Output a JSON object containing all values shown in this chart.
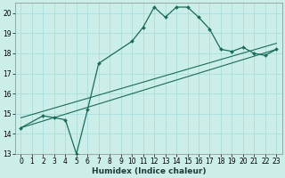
{
  "xlabel": "Humidex (Indice chaleur)",
  "background_color": "#cceee8",
  "grid_color": "#aadddd",
  "line_color": "#1a6b5a",
  "xlim": [
    -0.5,
    23.5
  ],
  "ylim": [
    13,
    20.5
  ],
  "yticks": [
    13,
    14,
    15,
    16,
    17,
    18,
    19,
    20
  ],
  "xticks": [
    0,
    1,
    2,
    3,
    4,
    5,
    6,
    7,
    8,
    9,
    10,
    11,
    12,
    13,
    14,
    15,
    16,
    17,
    18,
    19,
    20,
    21,
    22,
    23
  ],
  "curve_x": [
    0,
    2,
    3,
    4,
    5,
    6,
    7,
    10,
    11,
    12,
    13,
    14,
    15,
    16,
    17,
    18,
    19,
    20,
    21,
    22,
    23
  ],
  "curve_y": [
    14.3,
    14.9,
    14.8,
    14.7,
    13.0,
    15.2,
    17.5,
    18.6,
    19.3,
    20.3,
    19.8,
    20.3,
    20.3,
    19.8,
    19.2,
    18.2,
    18.1,
    18.3,
    18.0,
    17.9,
    18.2
  ],
  "line1_x": [
    0,
    23
  ],
  "line1_y": [
    14.3,
    18.2
  ],
  "line2_x": [
    0,
    23
  ],
  "line2_y": [
    14.8,
    18.5
  ],
  "tick_fontsize": 5.5,
  "xlabel_fontsize": 6.5
}
